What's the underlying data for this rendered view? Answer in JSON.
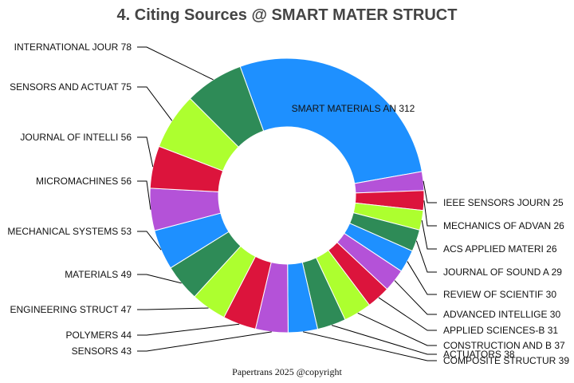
{
  "chart_data": {
    "type": "pie",
    "variant": "donut",
    "title": "4. Citing Sources @ SMART MATER STRUCT",
    "footer": "Papertrans 2025 @copyright",
    "legend": "none",
    "slices": [
      {
        "label": "SMART MATERIALS AN",
        "value": 312,
        "color": "#1e90ff"
      },
      {
        "label": "IEEE SENSORS JOURN",
        "value": 25,
        "color": "#b452d8"
      },
      {
        "label": "MECHANICS OF ADVAN",
        "value": 26,
        "color": "#dc143c"
      },
      {
        "label": "ACS APPLIED MATERI",
        "value": 26,
        "color": "#adff2f"
      },
      {
        "label": "JOURNAL OF SOUND A",
        "value": 29,
        "color": "#2e8b57"
      },
      {
        "label": "REVIEW OF SCIENTIF",
        "value": 30,
        "color": "#1e90ff"
      },
      {
        "label": "ADVANCED INTELLIGE",
        "value": 30,
        "color": "#b452d8"
      },
      {
        "label": "APPLIED SCIENCES-B",
        "value": 31,
        "color": "#dc143c"
      },
      {
        "label": "CONSTRUCTION AND B",
        "value": 37,
        "color": "#adff2f"
      },
      {
        "label": "ACTUATORS",
        "value": 38,
        "color": "#2e8b57"
      },
      {
        "label": "COMPOSITE STRUCTUR",
        "value": 39,
        "color": "#1e90ff"
      },
      {
        "label": "SENSORS",
        "value": 43,
        "color": "#b452d8"
      },
      {
        "label": "POLYMERS",
        "value": 44,
        "color": "#dc143c"
      },
      {
        "label": "ENGINEERING STRUCT",
        "value": 47,
        "color": "#adff2f"
      },
      {
        "label": "MATERIALS",
        "value": 49,
        "color": "#2e8b57"
      },
      {
        "label": "MECHANICAL SYSTEMS",
        "value": 53,
        "color": "#1e90ff"
      },
      {
        "label": "MICROMACHINES",
        "value": 56,
        "color": "#b452d8"
      },
      {
        "label": "JOURNAL OF INTELLI",
        "value": 56,
        "color": "#dc143c"
      },
      {
        "label": "SENSORS AND ACTUAT",
        "value": 75,
        "color": "#adff2f"
      },
      {
        "label": "INTERNATIONAL JOUR",
        "value": 78,
        "color": "#2e8b57"
      }
    ]
  }
}
